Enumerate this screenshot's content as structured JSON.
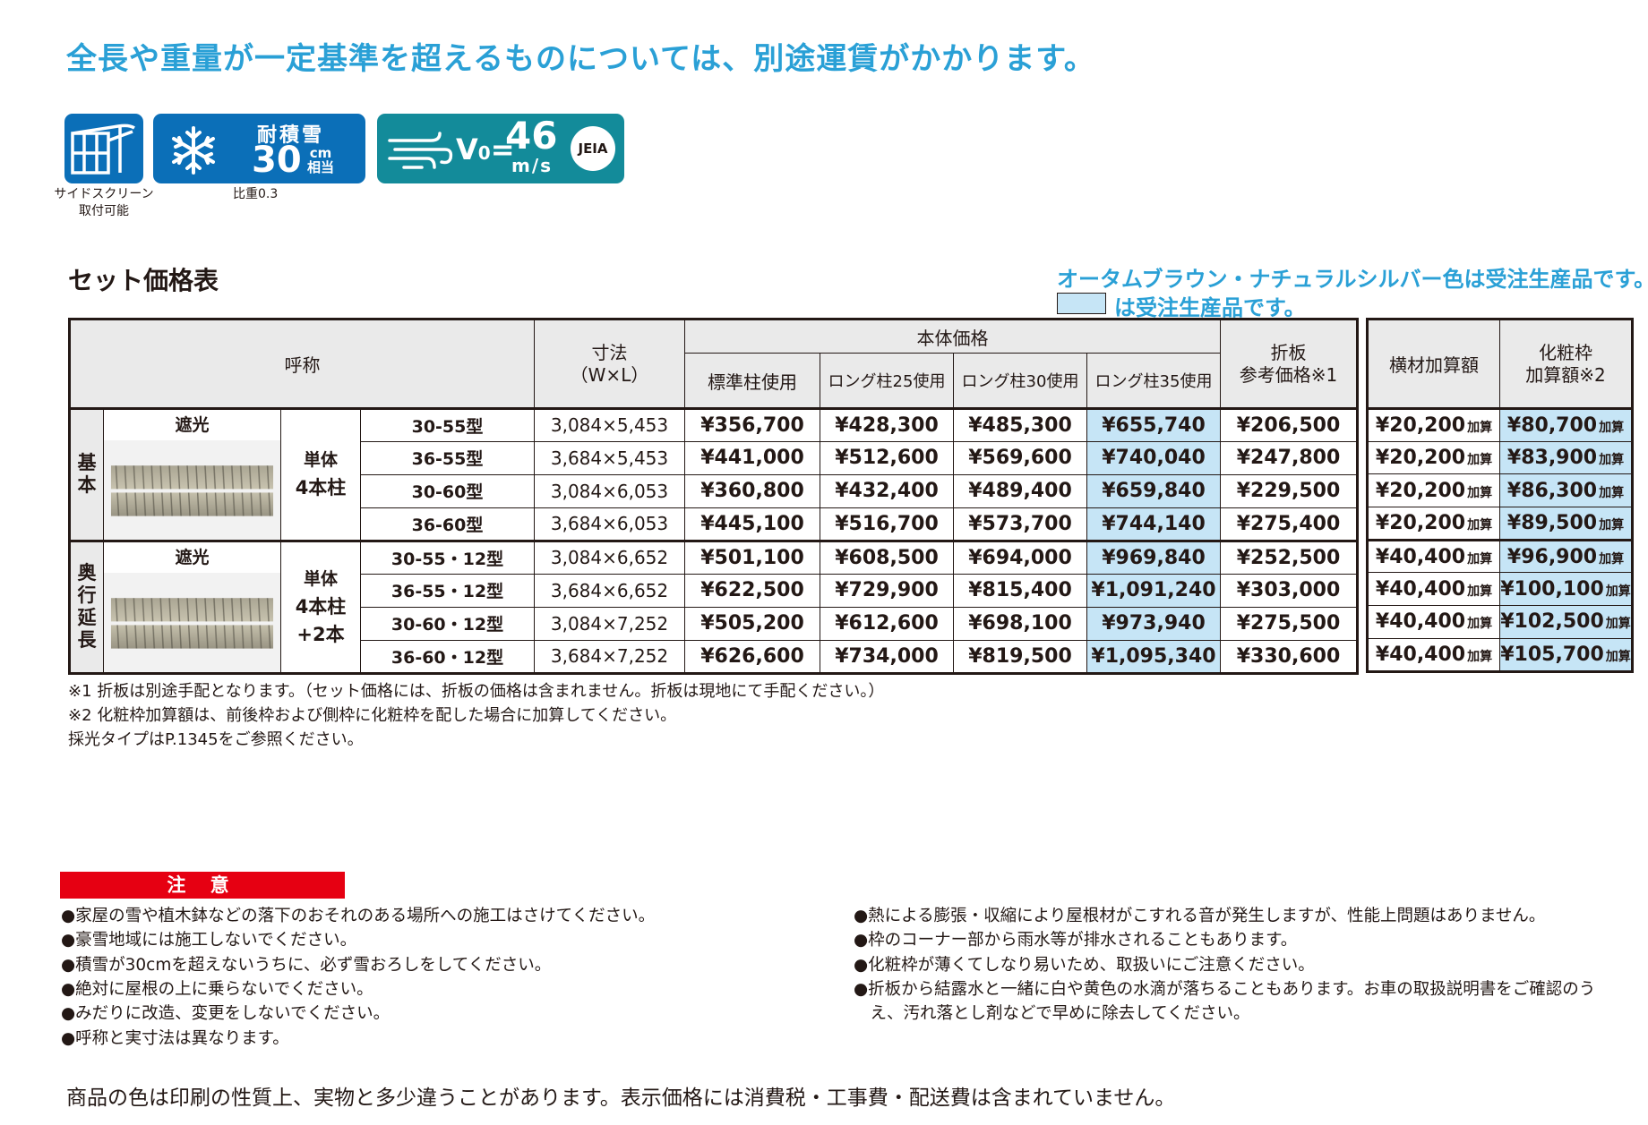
{
  "headline": "全長や重量が一定基準を超えるものについては、別途運賃がかかります。",
  "badges": {
    "side_screen": {
      "caption_line1": "サイドスクリーン",
      "caption_line2": "取付可能"
    },
    "snow": {
      "label": "耐積雪",
      "value": "30",
      "unit_top": "cm",
      "unit_bottom": "相当",
      "caption": "比重0.3"
    },
    "wind": {
      "v0": "V",
      "v0_sub": "0",
      "equals": "=",
      "value": "46",
      "unit": "m/s",
      "logo": "JEIA"
    }
  },
  "section_title": "セット価格表",
  "order_notes": {
    "line1": "オータムブラウン・ナチュラルシルバー色は受注生産品です。",
    "line2": "は受注生産品です。"
  },
  "table": {
    "headers": {
      "name": "呼称",
      "dim_line1": "寸法",
      "dim_line2": "（W×L）",
      "body_price": "本体価格",
      "std": "標準柱使用",
      "long25": "ロング柱25使用",
      "long30": "ロング柱30使用",
      "long35": "ロング柱35使用",
      "orita_line1": "折板",
      "orita_line2": "参考価格※1",
      "yoko": "横材加算額",
      "kesho_line1": "化粧枠",
      "kesho_line2": "加算額※2"
    },
    "add_suffix": "加算",
    "groups": [
      {
        "category_chars": [
          "基",
          "本"
        ],
        "light": "遮光",
        "post_lines": [
          "単体",
          "4本柱"
        ],
        "rows": [
          {
            "model": "30-55型",
            "dim": "3,084×5,453",
            "std": "¥356,700",
            "l25": "¥428,300",
            "l30": "¥485,300",
            "l35": "¥655,740",
            "orita": "¥206,500",
            "yoko": "¥20,200",
            "kesho": "¥80,700"
          },
          {
            "model": "36-55型",
            "dim": "3,684×5,453",
            "std": "¥441,000",
            "l25": "¥512,600",
            "l30": "¥569,600",
            "l35": "¥740,040",
            "orita": "¥247,800",
            "yoko": "¥20,200",
            "kesho": "¥83,900"
          },
          {
            "model": "30-60型",
            "dim": "3,084×6,053",
            "std": "¥360,800",
            "l25": "¥432,400",
            "l30": "¥489,400",
            "l35": "¥659,840",
            "orita": "¥229,500",
            "yoko": "¥20,200",
            "kesho": "¥86,300"
          },
          {
            "model": "36-60型",
            "dim": "3,684×6,053",
            "std": "¥445,100",
            "l25": "¥516,700",
            "l30": "¥573,700",
            "l35": "¥744,140",
            "orita": "¥275,400",
            "yoko": "¥20,200",
            "kesho": "¥89,500"
          }
        ]
      },
      {
        "category_chars": [
          "奥",
          "行",
          "延",
          "長"
        ],
        "light": "遮光",
        "post_lines": [
          "単体",
          "4本柱",
          "+2本"
        ],
        "rows": [
          {
            "model": "30-55・12型",
            "dim": "3,084×6,652",
            "std": "¥501,100",
            "l25": "¥608,500",
            "l30": "¥694,000",
            "l35": "¥969,840",
            "orita": "¥252,500",
            "yoko": "¥40,400",
            "kesho": "¥96,900"
          },
          {
            "model": "36-55・12型",
            "dim": "3,684×6,652",
            "std": "¥622,500",
            "l25": "¥729,900",
            "l30": "¥815,400",
            "l35": "¥1,091,240",
            "orita": "¥303,000",
            "yoko": "¥40,400",
            "kesho": "¥100,100"
          },
          {
            "model": "30-60・12型",
            "dim": "3,084×7,252",
            "std": "¥505,200",
            "l25": "¥612,600",
            "l30": "¥698,100",
            "l35": "¥973,940",
            "orita": "¥275,500",
            "yoko": "¥40,400",
            "kesho": "¥102,500"
          },
          {
            "model": "36-60・12型",
            "dim": "3,684×7,252",
            "std": "¥626,600",
            "l25": "¥734,000",
            "l30": "¥819,500",
            "l35": "¥1,095,340",
            "orita": "¥330,600",
            "yoko": "¥40,400",
            "kesho": "¥105,700"
          }
        ]
      }
    ]
  },
  "footnotes": [
    "※1 折板は別途手配となります。（セット価格には、折板の価格は含まれません。折板は現地にて手配ください。）",
    "※2 化粧枠加算額は、前後枠および側枠に化粧枠を配した場合に加算してください。",
    "採光タイプはP.1345をご参照ください。"
  ],
  "caution": {
    "title": "注 意",
    "left": [
      "●家屋の雪や植木鉢などの落下のおそれのある場所への施工はさけてください。",
      "●豪雪地域には施工しないでください。",
      "●積雪が30cmを超えないうちに、必ず雪おろしをしてください。",
      "●絶対に屋根の上に乗らないでください。",
      "●みだりに改造、変更をしないでください。",
      "●呼称と実寸法は異なります。"
    ],
    "right": [
      "●熱による膨張・収縮により屋根材がこすれる音が発生しますが、性能上問題はありません。",
      "●枠のコーナー部から雨水等が排水されることもあります。",
      "●化粧枠が薄くてしなり易いため、取扱いにご注意ください。",
      "●折板から結露水と一緒に白や黄色の水滴が落ちることもあります。お車の取扱説明書をご確認のう",
      "　え、汚れ落とし剤などで早めに除去してください。"
    ]
  },
  "bottom_note": "商品の色は印刷の性質上、実物と多少違うことがあります。表示価格には消費税・工事費・配送費は含まれていません。",
  "colors": {
    "accent_blue": "#2aa0d6",
    "badge_blue": "#0b6fb8",
    "badge_teal": "#138b9a",
    "highlight": "#c6e5f6",
    "caution_red": "#e60012"
  }
}
